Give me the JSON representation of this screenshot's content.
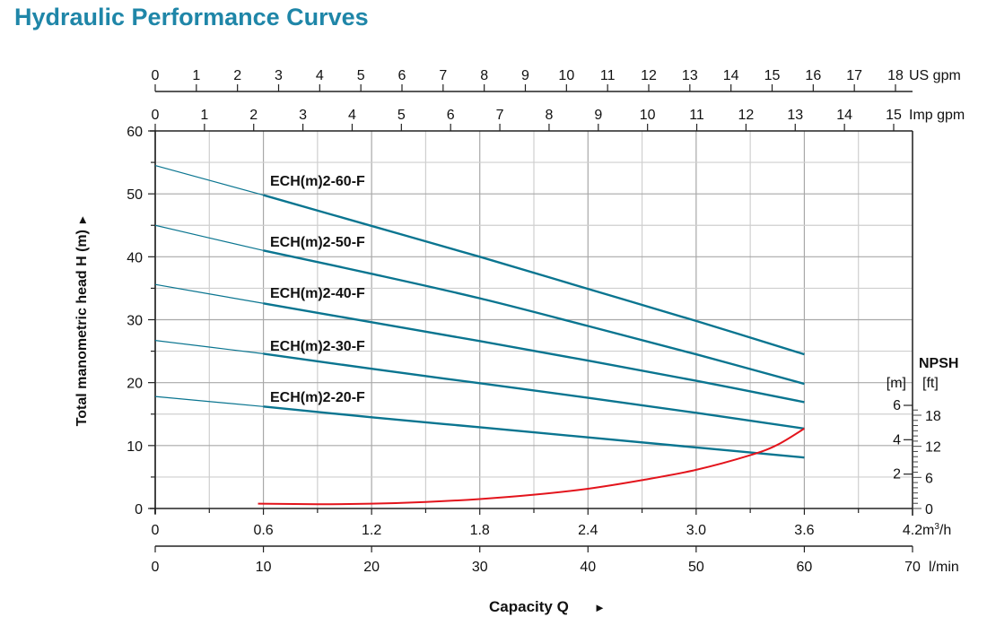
{
  "page": {
    "title": "Hydraulic Performance Curves"
  },
  "colors": {
    "title": "#1f86a8",
    "pump_curve": "#0a7590",
    "npsh_curve": "#e3141c",
    "grid": "#b4b4b4",
    "axis": "#222222"
  },
  "chart_data": {
    "type": "line",
    "title": "Hydraulic Performance Curves",
    "xlabel": "Capacity Q",
    "xlabel_arrow": "►",
    "ylabel": "Total manometric head H (m)",
    "ylabel_arrow": "►",
    "grid": true,
    "x_axis_primary": {
      "unit_label": "m³/h",
      "unit_main": "m",
      "unit_sup": "3",
      "unit_tail": "/h",
      "range": [
        0,
        4.2
      ],
      "ticks": [
        "0",
        "0.6",
        "1.2",
        "1.8",
        "2.4",
        "3.0",
        "3.6",
        "4.2"
      ],
      "tick_values": [
        0,
        0.6,
        1.2,
        1.8,
        2.4,
        3.0,
        3.6,
        4.2
      ]
    },
    "x_axis_lmin": {
      "unit_label": "l/min",
      "range": [
        0,
        70
      ],
      "ticks": [
        "0",
        "10",
        "20",
        "30",
        "40",
        "50",
        "60",
        "70"
      ],
      "tick_values": [
        0,
        10,
        20,
        30,
        40,
        50,
        60,
        70
      ]
    },
    "x_axis_us_gpm": {
      "unit_label": "US gpm",
      "ticks": [
        "0",
        "1",
        "2",
        "3",
        "4",
        "5",
        "6",
        "7",
        "8",
        "9",
        "10",
        "11",
        "12",
        "13",
        "14",
        "15",
        "16",
        "17",
        "18"
      ],
      "tick_values": [
        0,
        1,
        2,
        3,
        4,
        5,
        6,
        7,
        8,
        9,
        10,
        11,
        12,
        13,
        14,
        15,
        16,
        17,
        18
      ]
    },
    "x_axis_imp_gpm": {
      "unit_label": "Imp gpm",
      "ticks": [
        "0",
        "1",
        "2",
        "3",
        "4",
        "5",
        "6",
        "7",
        "8",
        "9",
        "10",
        "11",
        "12",
        "13",
        "14",
        "15"
      ],
      "tick_values": [
        0,
        1,
        2,
        3,
        4,
        5,
        6,
        7,
        8,
        9,
        10,
        11,
        12,
        13,
        14,
        15
      ]
    },
    "y_axis": {
      "range": [
        0,
        60
      ],
      "ticks": [
        "0",
        "10",
        "20",
        "30",
        "40",
        "50",
        "60"
      ],
      "tick_values": [
        0,
        10,
        20,
        30,
        40,
        50,
        60
      ],
      "minor_step": 5
    },
    "npsh_axis": {
      "title": "NPSH",
      "unit_m": "[m]",
      "unit_ft": "[ft]",
      "m_ticks": [
        "2",
        "4",
        "6"
      ],
      "m_tick_values": [
        2,
        4,
        6
      ],
      "ft_ticks": [
        "0",
        "6",
        "12",
        "18"
      ],
      "ft_tick_values": [
        0,
        6,
        12,
        18
      ],
      "m_range": [
        0,
        6.6
      ]
    },
    "series": [
      {
        "name": "ECH(m)2-60-F",
        "x": [
          0,
          0.6,
          1.2,
          1.8,
          2.4,
          3.0,
          3.6
        ],
        "y": [
          54.5,
          49.8,
          44.9,
          40.0,
          34.9,
          29.8,
          24.5
        ]
      },
      {
        "name": "ECH(m)2-50-F",
        "x": [
          0,
          0.6,
          1.2,
          1.8,
          2.4,
          3.0,
          3.6
        ],
        "y": [
          45.0,
          41.0,
          37.3,
          33.4,
          29.0,
          24.5,
          19.8
        ]
      },
      {
        "name": "ECH(m)2-40-F",
        "x": [
          0,
          0.6,
          1.2,
          1.8,
          2.4,
          3.0,
          3.6
        ],
        "y": [
          35.6,
          32.6,
          29.6,
          26.6,
          23.5,
          20.3,
          16.9
        ]
      },
      {
        "name": "ECH(m)2-30-F",
        "x": [
          0,
          0.6,
          1.2,
          1.8,
          2.4,
          3.0,
          3.6
        ],
        "y": [
          26.7,
          24.6,
          22.2,
          19.9,
          17.6,
          15.2,
          12.7
        ]
      },
      {
        "name": "ECH(m)2-20-F",
        "x": [
          0,
          0.6,
          1.2,
          1.8,
          2.4,
          3.0,
          3.6
        ],
        "y": [
          17.8,
          16.2,
          14.5,
          12.9,
          11.3,
          9.7,
          8.1
        ]
      }
    ],
    "npsh_series": {
      "name": "NPSH",
      "unit": "m",
      "x": [
        0.57,
        0.9,
        1.2,
        1.5,
        1.8,
        2.1,
        2.4,
        2.7,
        3.0,
        3.3,
        3.45,
        3.6
      ],
      "y": [
        0.28,
        0.25,
        0.28,
        0.38,
        0.55,
        0.8,
        1.15,
        1.65,
        2.25,
        3.1,
        3.7,
        4.65
      ]
    }
  }
}
